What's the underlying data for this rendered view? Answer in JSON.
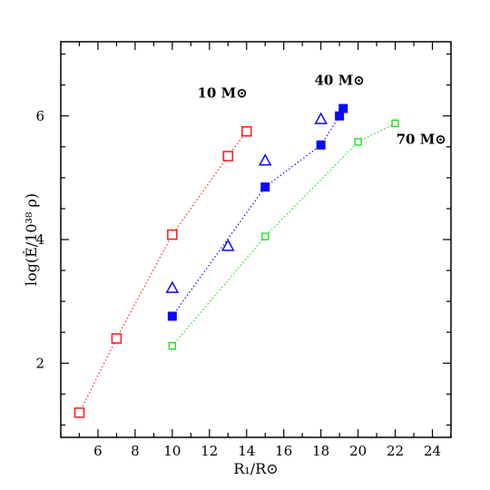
{
  "chart_data": {
    "type": "scatter",
    "title": "",
    "xlabel": "R₁/R⊙",
    "ylabel": "log(Ė/10³⁸ ρ)",
    "xlim": [
      4,
      25
    ],
    "ylim": [
      0.8,
      7.2
    ],
    "xticks": [
      6,
      8,
      10,
      12,
      14,
      16,
      18,
      20,
      22,
      24
    ],
    "yticks": [
      2,
      4,
      6
    ],
    "grid": false,
    "legend": "none",
    "series": [
      {
        "color": "#ff2020",
        "marker": "open-square",
        "line": "dotted",
        "points": [
          [
            5,
            1.2
          ],
          [
            7,
            2.4
          ],
          [
            10,
            4.08
          ],
          [
            13,
            5.35
          ],
          [
            14,
            5.75
          ]
        ]
      },
      {
        "color": "#0a0aff",
        "marker": "filled-square",
        "line": "dotted",
        "points": [
          [
            10,
            2.76
          ],
          [
            15,
            4.85
          ],
          [
            18,
            5.53
          ],
          [
            19,
            6.0
          ],
          [
            19.2,
            6.12
          ]
        ]
      },
      {
        "color": "#0a0aff",
        "marker": "open-triangle",
        "line": "none",
        "points": [
          [
            10,
            3.22
          ],
          [
            13,
            3.9
          ],
          [
            15,
            5.28
          ],
          [
            18,
            5.95
          ]
        ]
      },
      {
        "color": "#22dd22",
        "marker": "small-open-square",
        "line": "dotted",
        "points": [
          [
            10,
            2.28
          ],
          [
            15,
            4.05
          ],
          [
            20,
            5.58
          ],
          [
            22,
            5.88
          ]
        ]
      }
    ],
    "annotations": [
      {
        "id": "m10",
        "text": "10 M⊙",
        "x": 12.7,
        "y": 6.3
      },
      {
        "id": "m40",
        "text": "40 M⊙",
        "x": 19,
        "y": 6.5
      },
      {
        "id": "m70",
        "text": "70 M⊙",
        "x": 23.4,
        "y": 5.55
      }
    ]
  }
}
